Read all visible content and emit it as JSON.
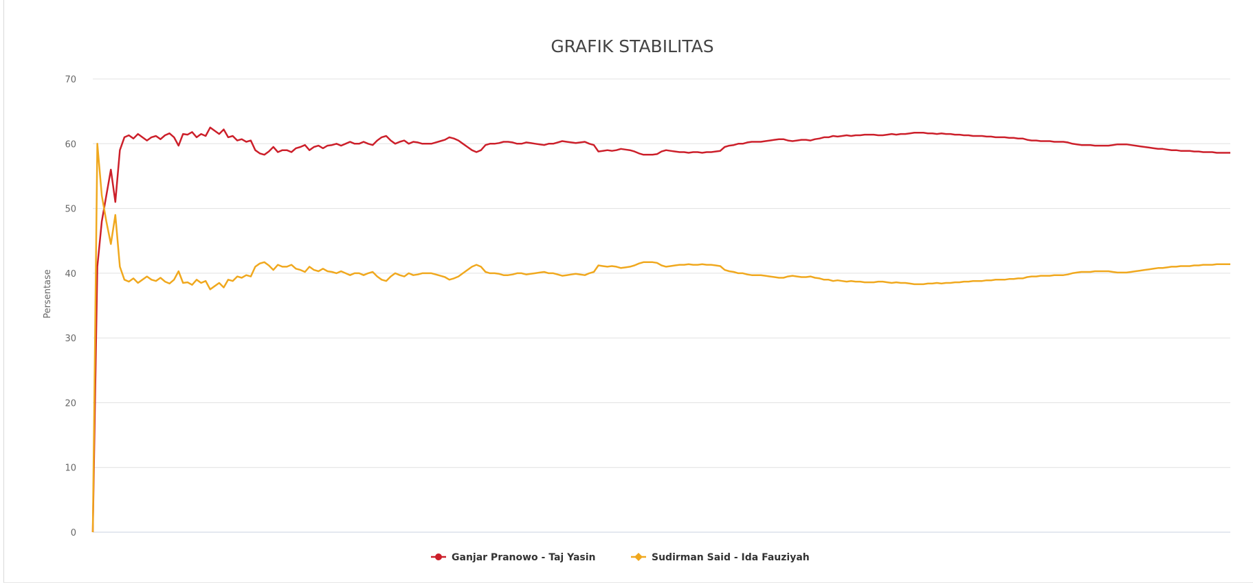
{
  "chart_data": {
    "type": "line",
    "title": "GRAFIK STABILITAS",
    "xlabel": "",
    "ylabel": "Persentase",
    "ylim": [
      0,
      70
    ],
    "yticks": [
      0,
      10,
      20,
      30,
      40,
      50,
      60,
      70
    ],
    "grid": true,
    "legend_position": "bottom-center",
    "colors": {
      "series_0": "#cc1f2a",
      "series_1": "#f0a81e",
      "grid": "#e0e0e0",
      "axis": "#c8d0e0"
    },
    "series": [
      {
        "name": "Ganjar Pranowo - Taj Yasin",
        "values": [
          0,
          41,
          48,
          52,
          56,
          51,
          59,
          61,
          61.3,
          60.8,
          61.5,
          61,
          60.5,
          61,
          61.2,
          60.7,
          61.3,
          61.6,
          61,
          59.7,
          61.5,
          61.4,
          61.8,
          61,
          61.5,
          61.2,
          62.5,
          62,
          61.5,
          62.2,
          61,
          61.2,
          60.5,
          60.7,
          60.3,
          60.5,
          59,
          58.5,
          58.3,
          58.8,
          59.5,
          58.7,
          59,
          59,
          58.7,
          59.3,
          59.5,
          59.8,
          59,
          59.5,
          59.7,
          59.3,
          59.7,
          59.8,
          60,
          59.7,
          60,
          60.3,
          60,
          60,
          60.3,
          60,
          59.8,
          60.5,
          61,
          61.2,
          60.5,
          60,
          60.3,
          60.5,
          60,
          60.3,
          60.2,
          60,
          60,
          60,
          60.2,
          60.4,
          60.6,
          61,
          60.8,
          60.5,
          60,
          59.5,
          59,
          58.7,
          59,
          59.8,
          60,
          60,
          60.1,
          60.3,
          60.3,
          60.2,
          60,
          60,
          60.2,
          60.1,
          60,
          59.9,
          59.8,
          60,
          60,
          60.2,
          60.4,
          60.3,
          60.2,
          60.1,
          60.2,
          60.3,
          60,
          59.8,
          58.8,
          58.9,
          59,
          58.9,
          59,
          59.2,
          59.1,
          59,
          58.8,
          58.5,
          58.3,
          58.3,
          58.3,
          58.4,
          58.8,
          59,
          58.9,
          58.8,
          58.7,
          58.7,
          58.6,
          58.7,
          58.7,
          58.6,
          58.7,
          58.7,
          58.8,
          58.9,
          59.5,
          59.7,
          59.8,
          60,
          60,
          60.2,
          60.3,
          60.3,
          60.3,
          60.4,
          60.5,
          60.6,
          60.7,
          60.7,
          60.5,
          60.4,
          60.5,
          60.6,
          60.6,
          60.5,
          60.7,
          60.8,
          61,
          61,
          61.2,
          61.1,
          61.2,
          61.3,
          61.2,
          61.3,
          61.3,
          61.4,
          61.4,
          61.4,
          61.3,
          61.3,
          61.4,
          61.5,
          61.4,
          61.5,
          61.5,
          61.6,
          61.7,
          61.7,
          61.7,
          61.6,
          61.6,
          61.5,
          61.6,
          61.5,
          61.5,
          61.4,
          61.4,
          61.3,
          61.3,
          61.2,
          61.2,
          61.2,
          61.1,
          61.1,
          61,
          61,
          61,
          60.9,
          60.9,
          60.8,
          60.8,
          60.6,
          60.5,
          60.5,
          60.4,
          60.4,
          60.4,
          60.3,
          60.3,
          60.3,
          60.2,
          60,
          59.9,
          59.8,
          59.8,
          59.8,
          59.7,
          59.7,
          59.7,
          59.7,
          59.8,
          59.9,
          59.9,
          59.9,
          59.8,
          59.7,
          59.6,
          59.5,
          59.4,
          59.3,
          59.2,
          59.2,
          59.1,
          59,
          59,
          58.9,
          58.9,
          58.9,
          58.8,
          58.8,
          58.7,
          58.7,
          58.7,
          58.6,
          58.6,
          58.6,
          58.6
        ]
      },
      {
        "name": "Sudirman Said - Ida Fauziyah",
        "values": [
          0,
          60,
          52,
          48,
          44.5,
          49,
          41,
          39,
          38.7,
          39.2,
          38.5,
          39,
          39.5,
          39,
          38.8,
          39.3,
          38.7,
          38.4,
          39,
          40.3,
          38.5,
          38.6,
          38.2,
          39,
          38.5,
          38.8,
          37.5,
          38,
          38.5,
          37.8,
          39,
          38.8,
          39.5,
          39.3,
          39.7,
          39.5,
          41,
          41.5,
          41.7,
          41.2,
          40.5,
          41.3,
          41,
          41,
          41.3,
          40.7,
          40.5,
          40.2,
          41,
          40.5,
          40.3,
          40.7,
          40.3,
          40.2,
          40,
          40.3,
          40,
          39.7,
          40,
          40,
          39.7,
          40,
          40.2,
          39.5,
          39,
          38.8,
          39.5,
          40,
          39.7,
          39.5,
          40,
          39.7,
          39.8,
          40,
          40,
          40,
          39.8,
          39.6,
          39.4,
          39,
          39.2,
          39.5,
          40,
          40.5,
          41,
          41.3,
          41,
          40.2,
          40,
          40,
          39.9,
          39.7,
          39.7,
          39.8,
          40,
          40,
          39.8,
          39.9,
          40,
          40.1,
          40.2,
          40,
          40,
          39.8,
          39.6,
          39.7,
          39.8,
          39.9,
          39.8,
          39.7,
          40,
          40.2,
          41.2,
          41.1,
          41,
          41.1,
          41,
          40.8,
          40.9,
          41,
          41.2,
          41.5,
          41.7,
          41.7,
          41.7,
          41.6,
          41.2,
          41,
          41.1,
          41.2,
          41.3,
          41.3,
          41.4,
          41.3,
          41.3,
          41.4,
          41.3,
          41.3,
          41.2,
          41.1,
          40.5,
          40.3,
          40.2,
          40,
          40,
          39.8,
          39.7,
          39.7,
          39.7,
          39.6,
          39.5,
          39.4,
          39.3,
          39.3,
          39.5,
          39.6,
          39.5,
          39.4,
          39.4,
          39.5,
          39.3,
          39.2,
          39,
          39,
          38.8,
          38.9,
          38.8,
          38.7,
          38.8,
          38.7,
          38.7,
          38.6,
          38.6,
          38.6,
          38.7,
          38.7,
          38.6,
          38.5,
          38.6,
          38.5,
          38.5,
          38.4,
          38.3,
          38.3,
          38.3,
          38.4,
          38.4,
          38.5,
          38.4,
          38.5,
          38.5,
          38.6,
          38.6,
          38.7,
          38.7,
          38.8,
          38.8,
          38.8,
          38.9,
          38.9,
          39,
          39,
          39,
          39.1,
          39.1,
          39.2,
          39.2,
          39.4,
          39.5,
          39.5,
          39.6,
          39.6,
          39.6,
          39.7,
          39.7,
          39.7,
          39.8,
          40,
          40.1,
          40.2,
          40.2,
          40.2,
          40.3,
          40.3,
          40.3,
          40.3,
          40.2,
          40.1,
          40.1,
          40.1,
          40.2,
          40.3,
          40.4,
          40.5,
          40.6,
          40.7,
          40.8,
          40.8,
          40.9,
          41,
          41,
          41.1,
          41.1,
          41.1,
          41.2,
          41.2,
          41.3,
          41.3,
          41.3,
          41.4,
          41.4,
          41.4,
          41.4
        ]
      }
    ]
  }
}
